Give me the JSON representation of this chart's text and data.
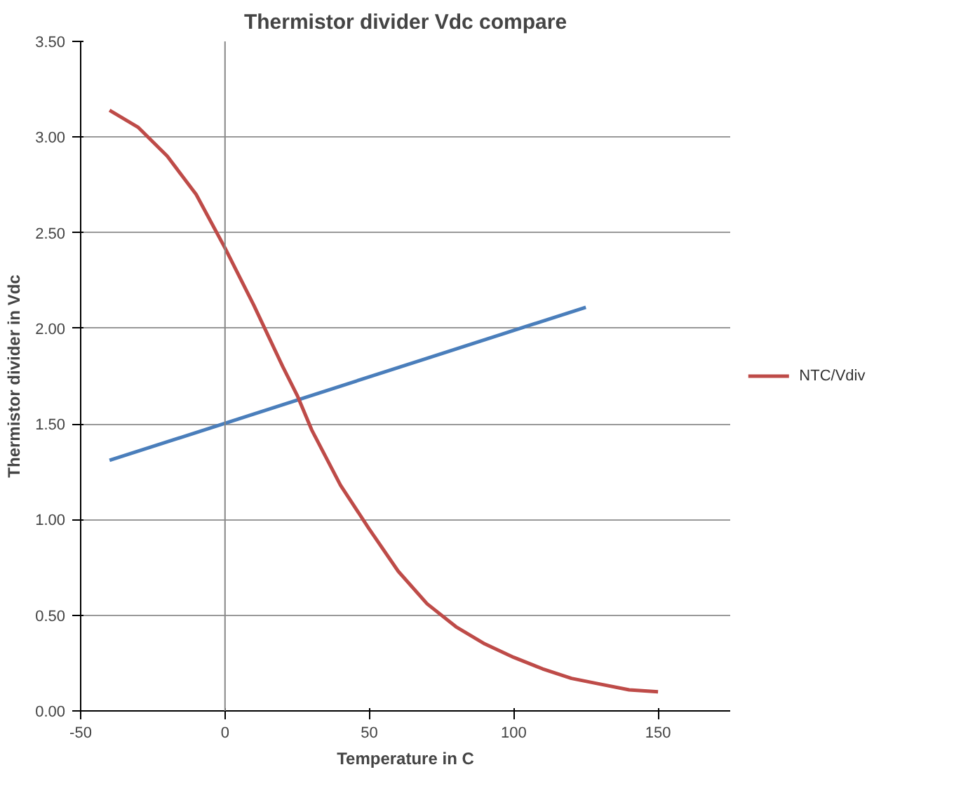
{
  "chart_data": {
    "type": "line",
    "title": "Thermistor divider Vdc compare",
    "xlabel": "Temperature in C",
    "ylabel": "Thermistor divider in Vdc",
    "xlim": [
      -50,
      175
    ],
    "xticks": [
      -50,
      0,
      50,
      100,
      150
    ],
    "ylim": [
      0,
      3.5
    ],
    "yticks": [
      {
        "value": 0,
        "label": "0.00"
      },
      {
        "value": 0.5,
        "label": "0.50"
      },
      {
        "value": 1,
        "label": "1.00"
      },
      {
        "value": 1.5,
        "label": "1.50"
      },
      {
        "value": 2,
        "label": "2.00"
      },
      {
        "value": 2.5,
        "label": "2.50"
      },
      {
        "value": 3,
        "label": "3.00"
      },
      {
        "value": 3.5,
        "label": "3.50"
      }
    ],
    "grid": "y",
    "legend": "right",
    "marker": "none",
    "line_style": "solid",
    "ref_lines": [
      {
        "axis": "x",
        "value": 0,
        "color": "#888888"
      }
    ],
    "series": [
      {
        "color": "#4a7ebb",
        "x": [
          -40,
          125
        ],
        "values": [
          1.31,
          2.11
        ]
      },
      {
        "name": "NTC/Vdiv",
        "color": "#be4b48",
        "x": [
          -40,
          -30,
          -20,
          -10,
          0,
          10,
          20,
          25,
          30,
          40,
          50,
          60,
          70,
          80,
          90,
          100,
          110,
          120,
          130,
          140,
          150
        ],
        "values": [
          3.14,
          3.05,
          2.9,
          2.7,
          2.42,
          2.12,
          1.8,
          1.65,
          1.47,
          1.18,
          0.95,
          0.73,
          0.56,
          0.44,
          0.35,
          0.28,
          0.22,
          0.17,
          0.14,
          0.11,
          0.1
        ]
      }
    ]
  }
}
